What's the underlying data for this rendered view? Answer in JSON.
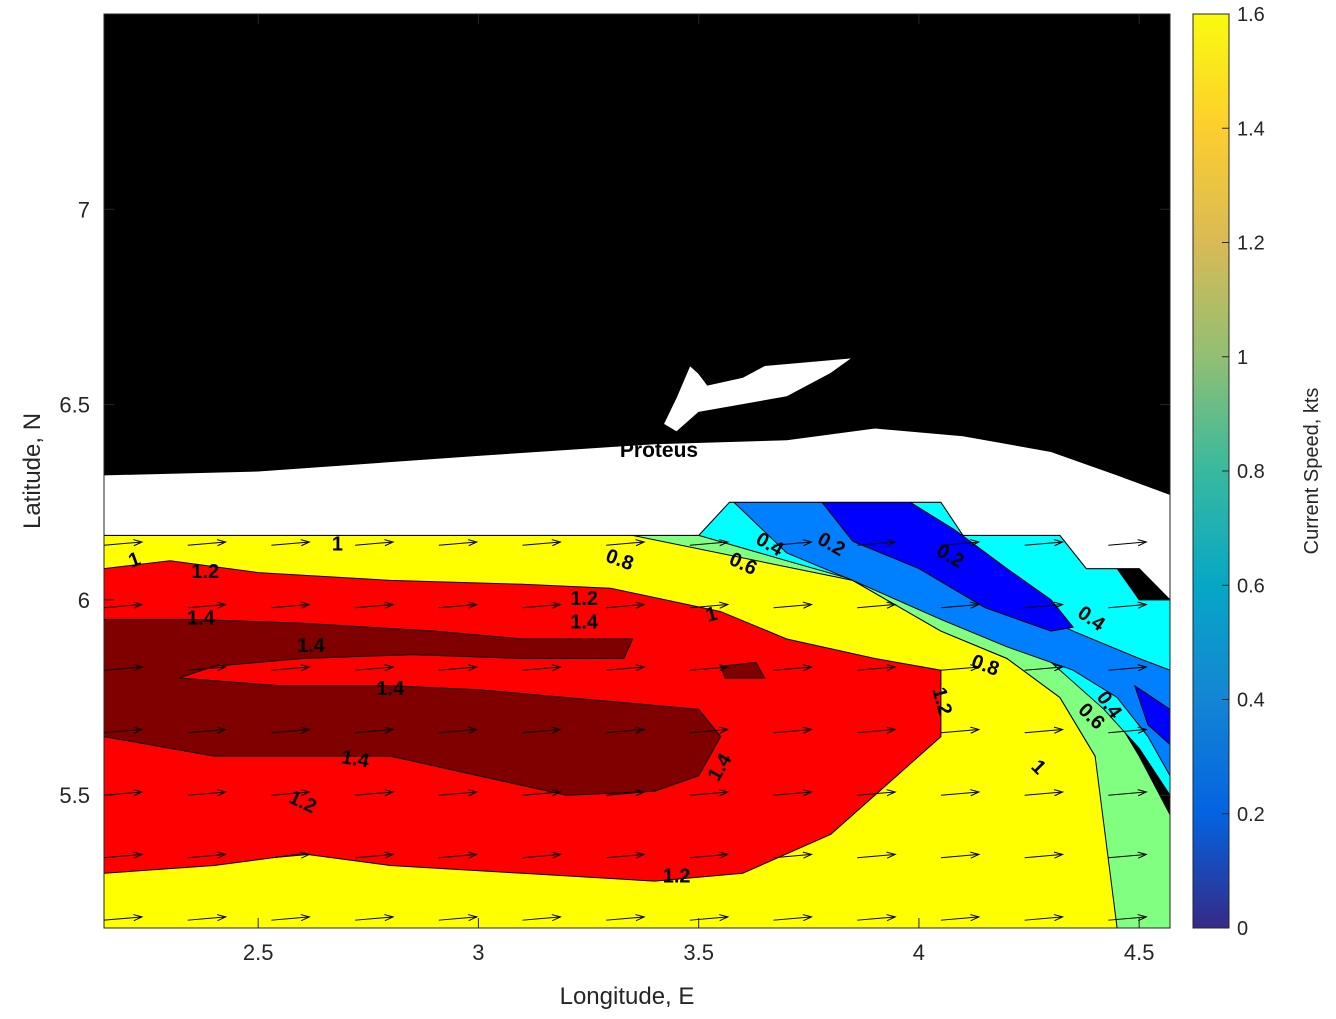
{
  "chart_data": {
    "type": "contour",
    "title": "",
    "xlabel": "Longitude, E",
    "ylabel": "Latitude, N",
    "xlim": [
      2.15,
      4.57
    ],
    "ylim": [
      5.16,
      7.5
    ],
    "xticks": [
      2.5,
      3,
      3.5,
      4,
      4.5
    ],
    "xtick_labels": [
      "2.5",
      "3",
      "3.5",
      "4",
      "4.5"
    ],
    "yticks": [
      5.5,
      6,
      6.5,
      7
    ],
    "ytick_labels": [
      "5.5",
      "6",
      "6.5",
      "7"
    ],
    "grid": false,
    "colorbar": {
      "label": "Current Speed, kts",
      "range": [
        0,
        1.6
      ],
      "ticks": [
        0,
        0.2,
        0.4,
        0.6,
        0.8,
        1,
        1.2,
        1.4,
        1.6
      ],
      "tick_labels": [
        "0",
        "0.2",
        "0.4",
        "0.6",
        "0.8",
        "1",
        "1.2",
        "1.4",
        "1.6"
      ],
      "colormap": "parula"
    },
    "contour_levels": [
      0.2,
      0.4,
      0.6,
      0.8,
      1,
      1.2,
      1.4
    ],
    "level_colors": {
      "below_0.2": "#0000cd",
      "0.2-0.4": "#0000ff",
      "0.4-0.6": "#0080ff",
      "0.6-0.8": "#00ffff",
      "0.8-1.0": "#80ff80",
      "1.0-1.2": "#ffff00",
      "1.2-1.4": "#ff8000",
      "1.4-1.6": "#ff0000",
      "above_1.6": "#800000"
    },
    "land_color": "#000000",
    "no_data_color": "#ffffff",
    "regions": [
      {
        "name": "speed-1.0-1.2",
        "color": "#ffff00",
        "polygon": [
          [
            2.15,
            6.165
          ],
          [
            3.55,
            6.165
          ],
          [
            3.62,
            6.12
          ],
          [
            3.85,
            6.05
          ],
          [
            4.05,
            5.92
          ],
          [
            4.2,
            5.85
          ],
          [
            4.32,
            5.75
          ],
          [
            4.4,
            5.6
          ],
          [
            4.45,
            5.4
          ],
          [
            4.55,
            5.16
          ],
          [
            2.15,
            5.16
          ]
        ]
      },
      {
        "name": "speed-0.8-1.0",
        "color": "#80ff80",
        "polygon": [
          [
            3.35,
            6.165
          ],
          [
            3.55,
            6.165
          ],
          [
            3.7,
            6.12
          ],
          [
            3.95,
            6.05
          ],
          [
            4.15,
            5.95
          ],
          [
            4.3,
            5.87
          ],
          [
            4.42,
            5.75
          ],
          [
            4.5,
            5.6
          ],
          [
            4.57,
            5.45
          ],
          [
            4.57,
            5.16
          ],
          [
            4.45,
            5.16
          ],
          [
            4.4,
            5.6
          ],
          [
            4.32,
            5.75
          ],
          [
            4.2,
            5.85
          ],
          [
            4.05,
            5.92
          ],
          [
            3.85,
            6.05
          ]
        ]
      },
      {
        "name": "speed-0.6-0.8",
        "color": "#00ffff",
        "polygon": [
          [
            3.5,
            6.165
          ],
          [
            3.57,
            6.25
          ],
          [
            4.05,
            6.25
          ],
          [
            4.1,
            6.165
          ],
          [
            4.32,
            6.165
          ],
          [
            4.38,
            6.08
          ],
          [
            4.45,
            6.08
          ],
          [
            4.5,
            6.0
          ],
          [
            4.57,
            6.0
          ],
          [
            4.57,
            5.5
          ],
          [
            4.5,
            5.62
          ],
          [
            4.42,
            5.72
          ],
          [
            4.3,
            5.84
          ],
          [
            4.15,
            5.93
          ],
          [
            3.95,
            6.02
          ],
          [
            3.7,
            6.1
          ]
        ]
      },
      {
        "name": "speed-0.4-0.6",
        "color": "#0080ff",
        "polygon": [
          [
            3.58,
            6.25
          ],
          [
            3.78,
            6.25
          ],
          [
            3.95,
            6.2
          ],
          [
            4.05,
            6.12
          ],
          [
            4.2,
            6.0
          ],
          [
            4.35,
            5.92
          ],
          [
            4.5,
            5.85
          ],
          [
            4.57,
            5.82
          ],
          [
            4.57,
            5.55
          ],
          [
            4.52,
            5.65
          ],
          [
            4.45,
            5.75
          ],
          [
            4.35,
            5.82
          ],
          [
            4.2,
            5.88
          ],
          [
            4.05,
            5.95
          ],
          [
            3.85,
            6.05
          ],
          [
            3.7,
            6.12
          ]
        ]
      },
      {
        "name": "speed-0.2-0.4",
        "color": "#0000ff",
        "polygon": [
          [
            3.78,
            6.25
          ],
          [
            3.98,
            6.25
          ],
          [
            4.08,
            6.18
          ],
          [
            4.2,
            6.08
          ],
          [
            4.3,
            6.0
          ],
          [
            4.35,
            5.93
          ],
          [
            4.3,
            5.92
          ],
          [
            4.15,
            5.98
          ],
          [
            4.0,
            6.08
          ],
          [
            3.85,
            6.15
          ]
        ]
      },
      {
        "name": "speed-0.2-0.4-east",
        "color": "#0000ff",
        "polygon": [
          [
            4.49,
            5.78
          ],
          [
            4.57,
            5.72
          ],
          [
            4.57,
            5.63
          ],
          [
            4.52,
            5.68
          ]
        ]
      },
      {
        "name": "speed-1.4-1.6",
        "color": "#ff0000",
        "polygon": [
          [
            2.15,
            6.08
          ],
          [
            2.3,
            6.1
          ],
          [
            2.5,
            6.07
          ],
          [
            2.8,
            6.05
          ],
          [
            3.1,
            6.04
          ],
          [
            3.3,
            6.03
          ],
          [
            3.55,
            5.97
          ],
          [
            3.7,
            5.9
          ],
          [
            3.9,
            5.85
          ],
          [
            4.05,
            5.82
          ],
          [
            4.05,
            5.65
          ],
          [
            3.95,
            5.55
          ],
          [
            3.8,
            5.4
          ],
          [
            3.6,
            5.3
          ],
          [
            3.4,
            5.28
          ],
          [
            3.1,
            5.3
          ],
          [
            2.8,
            5.32
          ],
          [
            2.6,
            5.35
          ],
          [
            2.4,
            5.32
          ],
          [
            2.15,
            5.3
          ]
        ]
      },
      {
        "name": "speed-above-1.6",
        "color": "#800000",
        "polygon": [
          [
            2.15,
            5.95
          ],
          [
            2.35,
            5.95
          ],
          [
            2.6,
            5.94
          ],
          [
            2.9,
            5.92
          ],
          [
            3.1,
            5.9
          ],
          [
            3.35,
            5.9
          ],
          [
            3.33,
            5.85
          ],
          [
            3.1,
            5.85
          ],
          [
            2.85,
            5.86
          ],
          [
            2.6,
            5.85
          ],
          [
            2.4,
            5.83
          ],
          [
            2.32,
            5.8
          ],
          [
            2.55,
            5.78
          ],
          [
            2.8,
            5.78
          ],
          [
            3.0,
            5.77
          ],
          [
            3.3,
            5.74
          ],
          [
            3.5,
            5.72
          ],
          [
            3.55,
            5.65
          ],
          [
            3.5,
            5.55
          ],
          [
            3.4,
            5.51
          ],
          [
            3.2,
            5.5
          ],
          [
            3.0,
            5.55
          ],
          [
            2.8,
            5.6
          ],
          [
            2.6,
            5.6
          ],
          [
            2.4,
            5.6
          ],
          [
            2.15,
            5.65
          ]
        ]
      },
      {
        "name": "speed-above-1.6-small",
        "color": "#800000",
        "polygon": [
          [
            3.55,
            5.83
          ],
          [
            3.63,
            5.84
          ],
          [
            3.65,
            5.8
          ],
          [
            3.56,
            5.8
          ]
        ]
      },
      {
        "name": "no-data-coastal-band",
        "color": "#ffffff",
        "polygon": [
          [
            2.15,
            6.32
          ],
          [
            2.5,
            6.33
          ],
          [
            3.0,
            6.37
          ],
          [
            3.4,
            6.4
          ],
          [
            3.7,
            6.41
          ],
          [
            3.9,
            6.44
          ],
          [
            4.1,
            6.42
          ],
          [
            4.3,
            6.38
          ],
          [
            4.45,
            6.32
          ],
          [
            4.57,
            6.27
          ],
          [
            4.57,
            6.0
          ],
          [
            4.5,
            6.08
          ],
          [
            4.45,
            6.08
          ],
          [
            4.38,
            6.08
          ],
          [
            4.32,
            6.165
          ],
          [
            4.1,
            6.165
          ],
          [
            4.05,
            6.25
          ],
          [
            3.57,
            6.25
          ],
          [
            3.5,
            6.165
          ],
          [
            2.15,
            6.165
          ]
        ]
      },
      {
        "name": "lagoon",
        "color": "#ffffff",
        "polygon": [
          [
            3.42,
            6.45
          ],
          [
            3.45,
            6.52
          ],
          [
            3.48,
            6.6
          ],
          [
            3.5,
            6.58
          ],
          [
            3.52,
            6.55
          ],
          [
            3.6,
            6.57
          ],
          [
            3.65,
            6.6
          ],
          [
            3.75,
            6.61
          ],
          [
            3.85,
            6.62
          ],
          [
            3.8,
            6.58
          ],
          [
            3.7,
            6.52
          ],
          [
            3.6,
            6.5
          ],
          [
            3.5,
            6.48
          ],
          [
            3.45,
            6.43
          ]
        ]
      }
    ],
    "contour_labels": [
      {
        "text": "1",
        "lon": 2.22,
        "lat": 6.1,
        "rot": -20
      },
      {
        "text": "1",
        "lon": 2.68,
        "lat": 6.14,
        "rot": 0
      },
      {
        "text": "1.2",
        "lon": 2.38,
        "lat": 6.07,
        "rot": 0
      },
      {
        "text": "1.4",
        "lon": 2.37,
        "lat": 5.95,
        "rot": 0
      },
      {
        "text": "1.4",
        "lon": 2.62,
        "lat": 5.88,
        "rot": 0
      },
      {
        "text": "1.4",
        "lon": 2.8,
        "lat": 5.77,
        "rot": 0
      },
      {
        "text": "1.4",
        "lon": 2.72,
        "lat": 5.59,
        "rot": 10
      },
      {
        "text": "1.2",
        "lon": 2.6,
        "lat": 5.48,
        "rot": 25
      },
      {
        "text": "0.8",
        "lon": 3.32,
        "lat": 6.1,
        "rot": 20
      },
      {
        "text": "1.2",
        "lon": 3.24,
        "lat": 6.0,
        "rot": 0
      },
      {
        "text": "1.4",
        "lon": 3.24,
        "lat": 5.94,
        "rot": 0
      },
      {
        "text": "1",
        "lon": 3.53,
        "lat": 5.96,
        "rot": -15
      },
      {
        "text": "0.6",
        "lon": 3.6,
        "lat": 6.09,
        "rot": 25
      },
      {
        "text": "0.4",
        "lon": 3.66,
        "lat": 6.14,
        "rot": 30
      },
      {
        "text": "0.2",
        "lon": 3.8,
        "lat": 6.14,
        "rot": 30
      },
      {
        "text": "0.2",
        "lon": 4.07,
        "lat": 6.11,
        "rot": 30
      },
      {
        "text": "0.4",
        "lon": 4.39,
        "lat": 5.95,
        "rot": 35
      },
      {
        "text": "0.8",
        "lon": 4.15,
        "lat": 5.83,
        "rot": 20
      },
      {
        "text": "1.2",
        "lon": 4.05,
        "lat": 5.74,
        "rot": 75
      },
      {
        "text": "1.4",
        "lon": 3.55,
        "lat": 5.57,
        "rot": -60
      },
      {
        "text": "0.4",
        "lon": 4.43,
        "lat": 5.73,
        "rot": 55
      },
      {
        "text": "0.6",
        "lon": 4.39,
        "lat": 5.7,
        "rot": 45
      },
      {
        "text": "1",
        "lon": 4.27,
        "lat": 5.57,
        "rot": 45
      },
      {
        "text": "1.2",
        "lon": 3.45,
        "lat": 5.29,
        "rot": 0
      }
    ],
    "place_labels": [
      {
        "text": "Proteus",
        "lon": 3.41,
        "lat": 6.38
      }
    ],
    "quiver": {
      "grid_lon": [
        2.15,
        2.34,
        2.53,
        2.72,
        2.91,
        3.1,
        3.29,
        3.48,
        3.67,
        3.86,
        4.05,
        4.24,
        4.43
      ],
      "grid_lat": [
        5.18,
        5.34,
        5.5,
        5.66,
        5.82,
        5.98,
        6.14
      ],
      "u_kts": 1.4,
      "v_kts": 0.12
    }
  }
}
